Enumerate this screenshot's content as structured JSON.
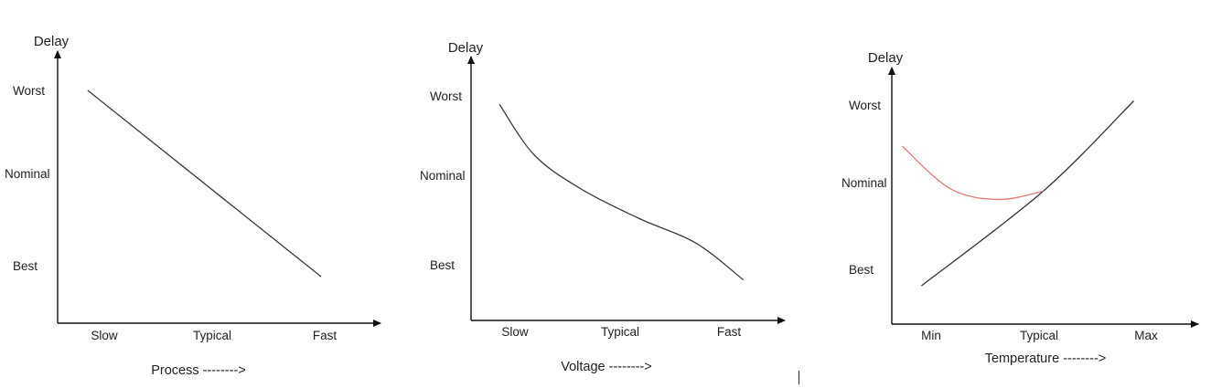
{
  "chart_data": [
    {
      "type": "line",
      "ylabel": "Delay",
      "xlabel": "Process -------->",
      "categories": [
        "Slow",
        "Typical",
        "Fast"
      ],
      "y_levels": [
        "Worst",
        "Nominal",
        "Best"
      ],
      "series": [
        {
          "color": "#3a3a3a",
          "points": [
            [
              0.03,
              2.0
            ],
            [
              1.0,
              0.0
            ]
          ]
        }
      ]
    },
    {
      "type": "line",
      "ylabel": "Delay",
      "xlabel": "Voltage -------->",
      "categories": [
        "Slow",
        "Typical",
        "Fast"
      ],
      "y_levels": [
        "Worst",
        "Nominal",
        "Best"
      ],
      "series": [
        {
          "color": "#3a3a3a",
          "points": [
            [
              0.0,
              1.9
            ],
            [
              0.15,
              1.3
            ],
            [
              0.35,
              0.9
            ],
            [
              0.6,
              0.55
            ],
            [
              0.85,
              0.25
            ],
            [
              1.05,
              -0.18
            ]
          ]
        }
      ]
    },
    {
      "type": "line",
      "ylabel": "Delay",
      "xlabel": "Temperature -------->",
      "categories": [
        "Min",
        "Typical",
        "Max"
      ],
      "y_levels": [
        "Worst",
        "Nominal",
        "Best"
      ],
      "series": [
        {
          "color": "#333333",
          "points": [
            [
              -0.05,
              -0.2
            ],
            [
              0.58,
              0.95
            ],
            [
              1.05,
              2.05
            ]
          ]
        },
        {
          "color": "#e07a7a",
          "points": [
            [
              -0.15,
              1.5
            ],
            [
              0.1,
              0.98
            ],
            [
              0.35,
              0.85
            ],
            [
              0.58,
              0.95
            ]
          ]
        }
      ]
    }
  ]
}
